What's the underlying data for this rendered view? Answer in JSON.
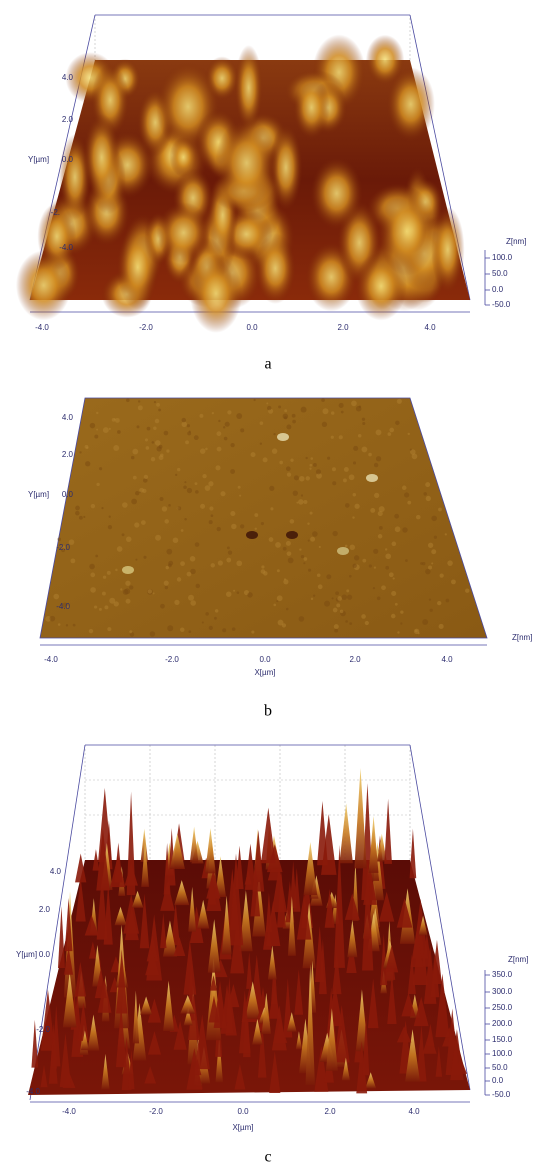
{
  "panels": [
    {
      "label": "a",
      "y_axis_label": "Y[µm]",
      "z_axis_label": "Z[nm]",
      "x_ticks": [
        "-4.0",
        "-2.0",
        "0.0",
        "2.0",
        "4.0"
      ],
      "y_ticks": [
        "4.0",
        "2.0",
        "0.0",
        "-2.",
        "-4.0"
      ],
      "z_ticks": [
        "100.0",
        "50.0",
        "0.0",
        "-50.0"
      ]
    },
    {
      "label": "b",
      "y_axis_label": "Y[µm]",
      "x_axis_label": "X[µm]",
      "z_axis_label": "Z[nm]",
      "x_ticks": [
        "-4.0",
        "-2.0",
        "0.0",
        "2.0",
        "4.0"
      ],
      "y_ticks": [
        "4.0",
        "2.0",
        "0.0",
        "-2.0",
        "-4.0"
      ]
    },
    {
      "label": "c",
      "y_axis_label": "Y[µm]",
      "x_axis_label": "X[µm]",
      "z_axis_label": "Z[nm]",
      "x_ticks": [
        "-4.0",
        "-2.0",
        "0.0",
        "2.0",
        "4.0"
      ],
      "y_ticks": [
        "4.0",
        "2.0",
        "0.0",
        "-2.0",
        "-4.0"
      ],
      "z_ticks": [
        "350.0",
        "300.0",
        "250.0",
        "200.0",
        "150.0",
        "100.0",
        "50.0",
        "0.0",
        "-50.0"
      ]
    }
  ]
}
